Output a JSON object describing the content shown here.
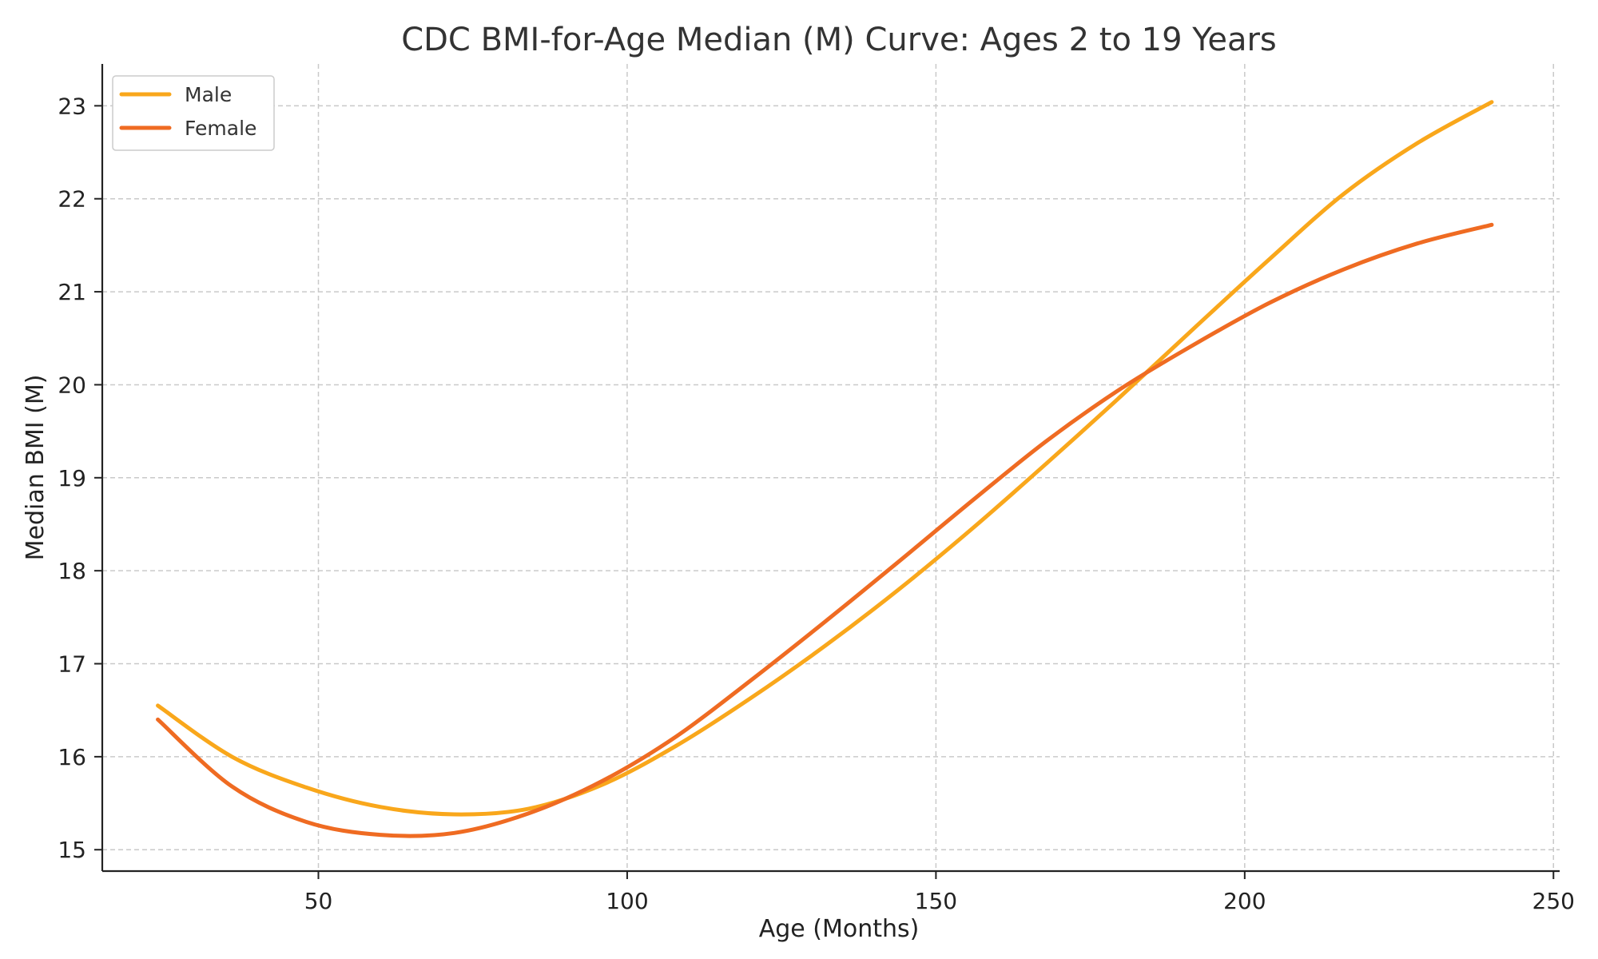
{
  "chart_data": {
    "type": "line",
    "title": "CDC BMI-for-Age Median (M) Curve: Ages 2 to 19 Years",
    "xlabel": "Age (Months)",
    "ylabel": "Median BMI (M)",
    "xlim": [
      15,
      251
    ],
    "ylim": [
      14.77,
      23.45
    ],
    "xticks": [
      50,
      100,
      150,
      200,
      250
    ],
    "yticks": [
      15,
      16,
      17,
      18,
      19,
      20,
      21,
      22,
      23
    ],
    "grid": true,
    "legend_position": "top-left",
    "x": [
      24,
      36,
      48,
      60,
      72,
      84,
      96,
      108,
      120,
      132,
      144,
      156,
      168,
      180,
      192,
      204,
      216,
      228,
      240
    ],
    "series": [
      {
        "name": "Male",
        "color": "#f9a71b",
        "values": [
          16.55,
          16.0,
          15.67,
          15.46,
          15.38,
          15.44,
          15.7,
          16.12,
          16.63,
          17.19,
          17.8,
          18.46,
          19.16,
          19.88,
          20.62,
          21.35,
          22.05,
          22.6,
          23.04
        ]
      },
      {
        "name": "Female",
        "color": "#ef6b22",
        "values": [
          16.4,
          15.68,
          15.3,
          15.16,
          15.18,
          15.39,
          15.74,
          16.22,
          16.82,
          17.45,
          18.1,
          18.76,
          19.4,
          19.96,
          20.44,
          20.88,
          21.24,
          21.52,
          21.72
        ]
      }
    ]
  }
}
